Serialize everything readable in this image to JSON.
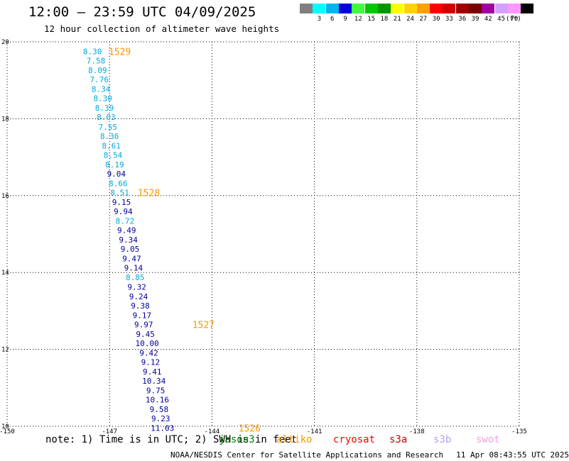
{
  "header": {
    "title": "12:00 — 23:59 UTC 04/09/2025",
    "subtitle": "12 hour collection of altimeter wave heights"
  },
  "colorbar": {
    "unit": "(ft)",
    "items": [
      {
        "label": "",
        "color": "#808080"
      },
      {
        "label": "3",
        "color": "#00ffff"
      },
      {
        "label": "6",
        "color": "#00b4f0"
      },
      {
        "label": "9",
        "color": "#0000dc"
      },
      {
        "label": "12",
        "color": "#3cff3c"
      },
      {
        "label": "15",
        "color": "#00c800"
      },
      {
        "label": "18",
        "color": "#009600"
      },
      {
        "label": "21",
        "color": "#ffff00"
      },
      {
        "label": "24",
        "color": "#ffd200"
      },
      {
        "label": "27",
        "color": "#ffa000"
      },
      {
        "label": "30",
        "color": "#ff0000"
      },
      {
        "label": "33",
        "color": "#d20000"
      },
      {
        "label": "36",
        "color": "#a00000"
      },
      {
        "label": "39",
        "color": "#780000"
      },
      {
        "label": "42",
        "color": "#a000a0"
      },
      {
        "label": "45",
        "color": "#d2a0ff"
      },
      {
        "label": "70",
        "color": "#ff96ff"
      },
      {
        "label": "",
        "color": "#000000"
      }
    ]
  },
  "map": {
    "lon_range": [
      -150,
      -135
    ],
    "lat_range": [
      10,
      20
    ],
    "x_ticks": [
      "-150",
      "-147",
      "-144",
      "-141",
      "-138",
      "-135"
    ],
    "y_ticks": [
      "20",
      "18",
      "16",
      "14",
      "12",
      "10"
    ],
    "colors": {
      "light": "#00aadd",
      "dark": "#00009b",
      "cycle": "#ff9900"
    },
    "points": [
      {
        "label": "8.30",
        "tone": "light",
        "lon": -147.5,
        "lat": 19.75
      },
      {
        "label": "7.58",
        "tone": "light",
        "lon": -147.4,
        "lat": 19.51
      },
      {
        "label": "8.09",
        "tone": "light",
        "lon": -147.35,
        "lat": 19.26
      },
      {
        "label": "7.76",
        "tone": "light",
        "lon": -147.3,
        "lat": 19.02
      },
      {
        "label": "8.34",
        "tone": "light",
        "lon": -147.25,
        "lat": 18.77
      },
      {
        "label": "8.30",
        "tone": "light",
        "lon": -147.2,
        "lat": 18.53
      },
      {
        "label": "8.39",
        "tone": "light",
        "lon": -147.15,
        "lat": 18.28
      },
      {
        "label": "8.03",
        "tone": "light",
        "lon": -147.1,
        "lat": 18.04
      },
      {
        "label": "7.55",
        "tone": "light",
        "lon": -147.05,
        "lat": 17.79
      },
      {
        "label": "8.36",
        "tone": "light",
        "lon": -147.0,
        "lat": 17.55
      },
      {
        "label": "8.61",
        "tone": "light",
        "lon": -146.95,
        "lat": 17.3
      },
      {
        "label": "8.54",
        "tone": "light",
        "lon": -146.9,
        "lat": 17.06
      },
      {
        "label": "8.19",
        "tone": "light",
        "lon": -146.85,
        "lat": 16.81
      },
      {
        "label": "9.04",
        "tone": "dark",
        "lon": -146.8,
        "lat": 16.57
      },
      {
        "label": "8.66",
        "tone": "light",
        "lon": -146.75,
        "lat": 16.32
      },
      {
        "label": "8.51",
        "tone": "light",
        "lon": -146.7,
        "lat": 16.08
      },
      {
        "label": "9.15",
        "tone": "dark",
        "lon": -146.65,
        "lat": 15.83
      },
      {
        "label": "9.94",
        "tone": "dark",
        "lon": -146.6,
        "lat": 15.59
      },
      {
        "label": "8.72",
        "tone": "light",
        "lon": -146.55,
        "lat": 15.34
      },
      {
        "label": "9.49",
        "tone": "dark",
        "lon": -146.5,
        "lat": 15.1
      },
      {
        "label": "9.34",
        "tone": "dark",
        "lon": -146.45,
        "lat": 14.85
      },
      {
        "label": "9.05",
        "tone": "dark",
        "lon": -146.4,
        "lat": 14.61
      },
      {
        "label": "9.47",
        "tone": "dark",
        "lon": -146.35,
        "lat": 14.36
      },
      {
        "label": "9.14",
        "tone": "dark",
        "lon": -146.3,
        "lat": 14.12
      },
      {
        "label": "8.85",
        "tone": "light",
        "lon": -146.25,
        "lat": 13.87
      },
      {
        "label": "9.32",
        "tone": "dark",
        "lon": -146.2,
        "lat": 13.63
      },
      {
        "label": "9.24",
        "tone": "dark",
        "lon": -146.15,
        "lat": 13.38
      },
      {
        "label": "9.38",
        "tone": "dark",
        "lon": -146.1,
        "lat": 13.14
      },
      {
        "label": "9.17",
        "tone": "dark",
        "lon": -146.05,
        "lat": 12.89
      },
      {
        "label": "9.97",
        "tone": "dark",
        "lon": -146.0,
        "lat": 12.65
      },
      {
        "label": "9.45",
        "tone": "dark",
        "lon": -145.95,
        "lat": 12.4
      },
      {
        "label": "10.00",
        "tone": "dark",
        "lon": -145.9,
        "lat": 12.16
      },
      {
        "label": "9.42",
        "tone": "dark",
        "lon": -145.85,
        "lat": 11.91
      },
      {
        "label": "9.12",
        "tone": "dark",
        "lon": -145.8,
        "lat": 11.67
      },
      {
        "label": "9.41",
        "tone": "dark",
        "lon": -145.75,
        "lat": 11.42
      },
      {
        "label": "10.34",
        "tone": "dark",
        "lon": -145.7,
        "lat": 11.18
      },
      {
        "label": "9.75",
        "tone": "dark",
        "lon": -145.65,
        "lat": 10.93
      },
      {
        "label": "10.16",
        "tone": "dark",
        "lon": -145.6,
        "lat": 10.69
      },
      {
        "label": "9.58",
        "tone": "dark",
        "lon": -145.55,
        "lat": 10.44
      },
      {
        "label": "9.23",
        "tone": "dark",
        "lon": -145.5,
        "lat": 10.2
      },
      {
        "label": "11.03",
        "tone": "dark",
        "lon": -145.45,
        "lat": 9.95
      }
    ],
    "cycles": [
      {
        "label": "1529",
        "lon": -146.7,
        "lat": 19.75
      },
      {
        "label": "1528",
        "lon": -145.85,
        "lat": 16.08
      },
      {
        "label": "1527",
        "lon": -144.25,
        "lat": 12.65
      },
      {
        "label": "1526",
        "lon": -142.9,
        "lat": 9.95
      }
    ]
  },
  "note": {
    "text1": "note: 1) Time is in UTC; 2) SWH is in feet"
  },
  "missions": [
    {
      "label": "jason3",
      "color": "#008000"
    },
    {
      "label": "altiko",
      "color": "#ff9900"
    },
    {
      "label": "cryosat",
      "color": "#ff0000"
    },
    {
      "label": "s3a",
      "color": "#cc0000"
    },
    {
      "label": "s3b",
      "color": "#b8a0f0"
    },
    {
      "label": "swot",
      "color": "#f0a0e0"
    }
  ],
  "footer": {
    "credit": "NOAA/NESDIS Center for Satellite Applications and Research",
    "timestamp": "11 Apr 08:43:55 UTC 2025"
  }
}
